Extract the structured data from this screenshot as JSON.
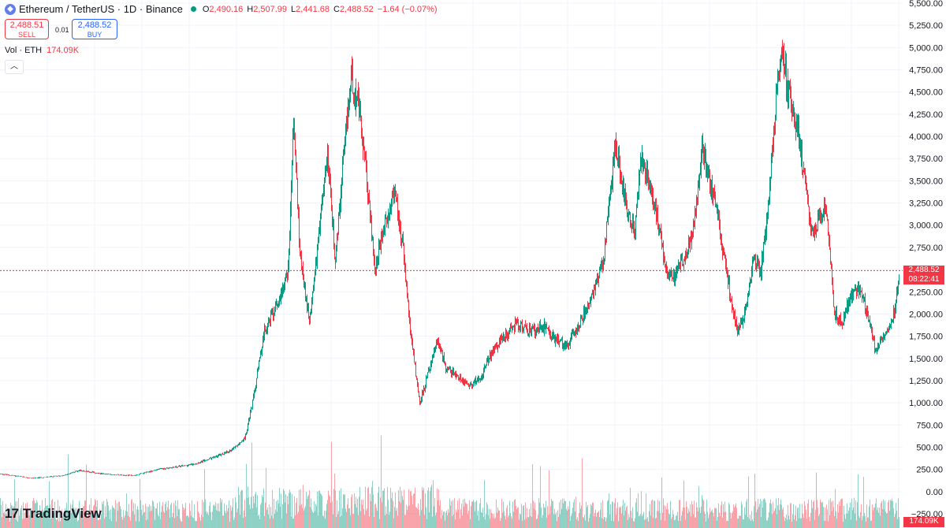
{
  "header": {
    "title": "Ethereum / TetherUS · 1D · Binance",
    "o_label": "O",
    "o": "2,490.16",
    "h_label": "H",
    "h": "2,507.99",
    "l_label": "L",
    "l": "2,441.68",
    "c_label": "C",
    "c": "2,488.52",
    "change": "−1.64 (−0.07%)"
  },
  "trade": {
    "sell_price": "2,488.51",
    "sell_label": "SELL",
    "buy_price": "2,488.52",
    "buy_label": "BUY",
    "spread": "0.01"
  },
  "volume": {
    "label": "Vol · ETH",
    "value": "174.09K"
  },
  "collapse_icon": "chevron-up-icon",
  "price_badge": {
    "price": "2,488.52",
    "countdown": "08:22:41"
  },
  "volume_badge": "174.09K",
  "logo": {
    "mark": "17",
    "text": "TradingView"
  },
  "colors": {
    "up": "#089981",
    "down": "#f23645",
    "grid": "#f0f3fa",
    "text": "#131722"
  },
  "chart_data": {
    "type": "candlestick",
    "symbol": "ETH/USDT",
    "interval": "1D",
    "ylim": [
      -250,
      5500
    ],
    "y_ticks": [
      "5,500.00",
      "5,250.00",
      "5,000.00",
      "4,750.00",
      "4,500.00",
      "4,250.00",
      "4,000.00",
      "3,750.00",
      "3,500.00",
      "3,250.00",
      "3,000.00",
      "2,750.00",
      "2,500.00",
      "2,250.00",
      "2,000.00",
      "1,750.00",
      "1,500.00",
      "1,250.00",
      "1,000.00",
      "750.00",
      "500.00",
      "250.00",
      "0.00",
      "−250.00"
    ],
    "y_tick_values": [
      5500,
      5250,
      5000,
      4750,
      4500,
      4250,
      4000,
      3750,
      3500,
      3250,
      3000,
      2750,
      2500,
      2250,
      2000,
      1750,
      1500,
      1250,
      1000,
      750,
      500,
      250,
      0,
      -250
    ],
    "last_price": 2488.52,
    "price_path": [
      [
        0,
        200
      ],
      [
        40,
        150
      ],
      [
        80,
        180
      ],
      [
        100,
        240
      ],
      [
        130,
        200
      ],
      [
        170,
        180
      ],
      [
        200,
        250
      ],
      [
        240,
        300
      ],
      [
        260,
        350
      ],
      [
        290,
        450
      ],
      [
        310,
        600
      ],
      [
        320,
        1000
      ],
      [
        335,
        1800
      ],
      [
        355,
        2200
      ],
      [
        365,
        2500
      ],
      [
        372,
        4200
      ],
      [
        380,
        2700
      ],
      [
        392,
        1900
      ],
      [
        405,
        3000
      ],
      [
        415,
        3800
      ],
      [
        425,
        2600
      ],
      [
        435,
        3700
      ],
      [
        445,
        4700
      ],
      [
        455,
        4300
      ],
      [
        465,
        3500
      ],
      [
        475,
        2500
      ],
      [
        485,
        2900
      ],
      [
        500,
        3400
      ],
      [
        510,
        2800
      ],
      [
        520,
        1800
      ],
      [
        532,
        1000
      ],
      [
        545,
        1400
      ],
      [
        555,
        1700
      ],
      [
        565,
        1400
      ],
      [
        580,
        1300
      ],
      [
        595,
        1200
      ],
      [
        610,
        1300
      ],
      [
        625,
        1600
      ],
      [
        640,
        1750
      ],
      [
        655,
        1900
      ],
      [
        670,
        1800
      ],
      [
        690,
        1850
      ],
      [
        705,
        1700
      ],
      [
        720,
        1650
      ],
      [
        735,
        1900
      ],
      [
        750,
        2200
      ],
      [
        765,
        2600
      ],
      [
        780,
        3900
      ],
      [
        795,
        3200
      ],
      [
        805,
        2900
      ],
      [
        812,
        3800
      ],
      [
        825,
        3400
      ],
      [
        835,
        3000
      ],
      [
        845,
        2500
      ],
      [
        855,
        2400
      ],
      [
        870,
        2700
      ],
      [
        880,
        3000
      ],
      [
        890,
        3900
      ],
      [
        900,
        3500
      ],
      [
        910,
        3100
      ],
      [
        920,
        2500
      ],
      [
        935,
        1800
      ],
      [
        945,
        2000
      ],
      [
        955,
        2600
      ],
      [
        965,
        2500
      ],
      [
        975,
        3300
      ],
      [
        985,
        4600
      ],
      [
        992,
        4900
      ],
      [
        1002,
        4400
      ],
      [
        1012,
        4100
      ],
      [
        1020,
        3500
      ],
      [
        1030,
        2900
      ],
      [
        1040,
        3100
      ],
      [
        1048,
        3200
      ],
      [
        1058,
        2000
      ],
      [
        1068,
        1900
      ],
      [
        1078,
        2200
      ],
      [
        1090,
        2300
      ],
      [
        1100,
        2000
      ],
      [
        1110,
        1600
      ],
      [
        1122,
        1800
      ],
      [
        1130,
        1900
      ],
      [
        1136,
        2100
      ],
      [
        1140,
        2480
      ]
    ],
    "volume_scale_max": 100
  }
}
